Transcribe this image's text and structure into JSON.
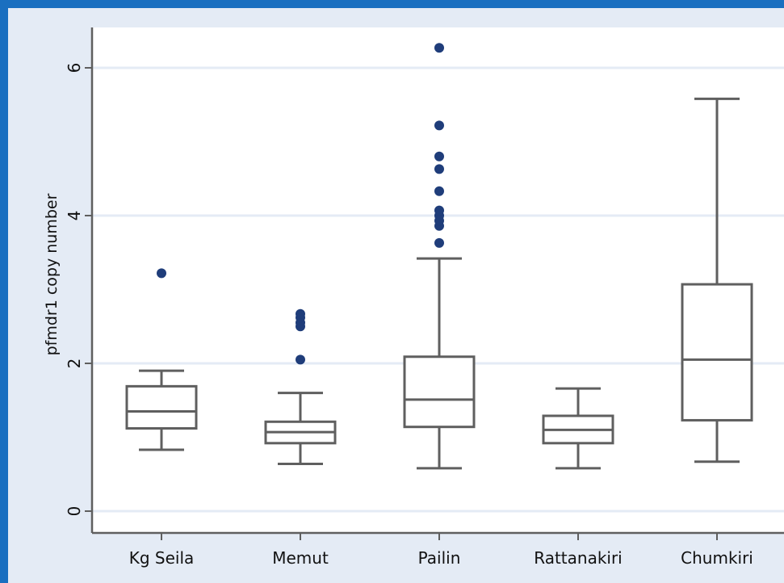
{
  "chart_data": {
    "type": "box",
    "title": "",
    "xlabel": "",
    "ylabel": "pfmdr1 copy number",
    "ylim": [
      -0.3,
      6.5
    ],
    "yticks": [
      0,
      2,
      4,
      6
    ],
    "ytick_labels": [
      "0",
      "2",
      "4",
      "6"
    ],
    "grid": true,
    "categories": [
      "Kg Seila",
      "Memut",
      "Pailin",
      "Rattanakiri",
      "Chumkiri"
    ],
    "boxes": [
      {
        "category": "Kg Seila",
        "whisker_low": 0.83,
        "q1": 1.12,
        "median": 1.35,
        "q3": 1.69,
        "whisker_high": 1.9,
        "outliers": [
          3.22
        ]
      },
      {
        "category": "Memut",
        "whisker_low": 0.64,
        "q1": 0.92,
        "median": 1.07,
        "q3": 1.21,
        "whisker_high": 1.6,
        "outliers": [
          2.05,
          2.5,
          2.55,
          2.62,
          2.67
        ]
      },
      {
        "category": "Pailin",
        "whisker_low": 0.58,
        "q1": 1.14,
        "median": 1.51,
        "q3": 2.09,
        "whisker_high": 3.42,
        "outliers": [
          3.63,
          3.86,
          3.93,
          4.0,
          4.07,
          4.33,
          4.63,
          4.8,
          5.22,
          6.27
        ]
      },
      {
        "category": "Rattanakiri",
        "whisker_low": 0.58,
        "q1": 0.92,
        "median": 1.1,
        "q3": 1.29,
        "whisker_high": 1.66,
        "outliers": []
      },
      {
        "category": "Chumkiri",
        "whisker_low": 0.67,
        "q1": 1.23,
        "median": 2.05,
        "q3": 3.07,
        "whisker_high": 5.58,
        "outliers": []
      }
    ],
    "colors": {
      "frame": "#1a6fc0",
      "background": "#e4ebf5",
      "plot_area": "#ffffff",
      "grid": "#e4ebf5",
      "box": "#5f5f5f",
      "outlier": "#1f3d7a"
    }
  }
}
